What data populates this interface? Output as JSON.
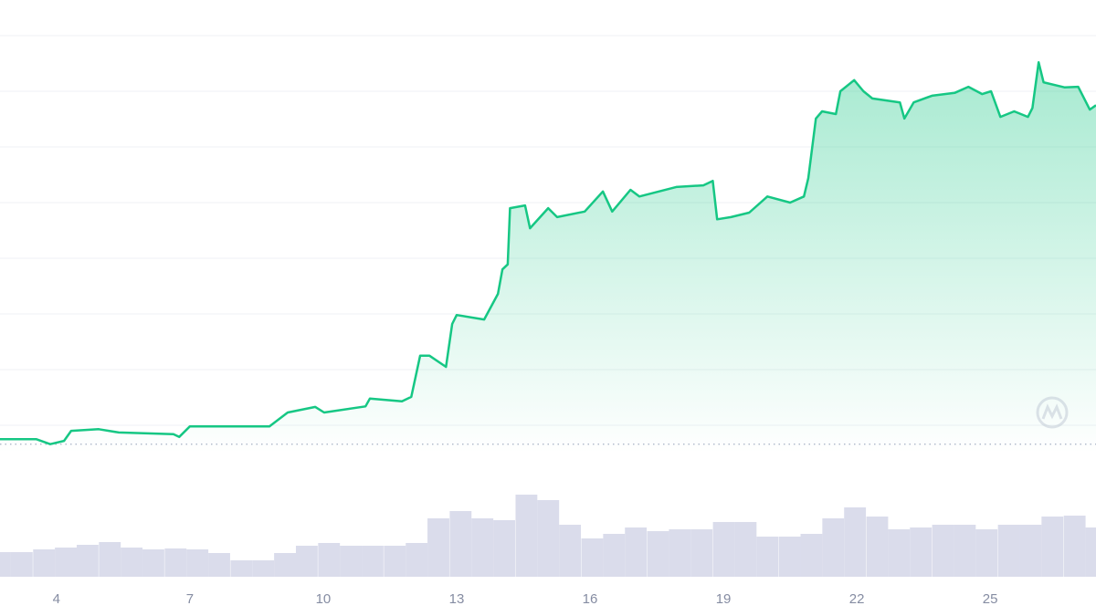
{
  "chart_data": {
    "type": "area",
    "xlim": [
      2.73,
      27.38
    ],
    "xticks": [
      4,
      7,
      10,
      13,
      16,
      19,
      22,
      25
    ],
    "ylim": [
      0.5,
      8.5
    ],
    "yticks": [
      1,
      2,
      3,
      4,
      5,
      6,
      7,
      8
    ],
    "grid": true,
    "baseline": 0.66,
    "series": [
      {
        "color": "#16c784",
        "x": [
          2.73,
          3.55,
          3.86,
          4.17,
          4.33,
          4.95,
          5.4,
          6.63,
          6.76,
          7.0,
          8.79,
          9.2,
          9.82,
          10.02,
          10.95,
          11.05,
          11.77,
          11.98,
          12.18,
          12.39,
          12.76,
          12.9,
          13.0,
          13.62,
          13.93,
          14.03,
          14.15,
          14.2,
          14.54,
          14.65,
          15.06,
          15.26,
          15.88,
          16.29,
          16.5,
          16.91,
          17.11,
          17.94,
          18.55,
          18.76,
          18.86,
          19.17,
          19.58,
          19.99,
          20.5,
          20.81,
          20.91,
          21.08,
          21.22,
          21.53,
          21.63,
          21.94,
          22.15,
          22.35,
          22.97,
          23.07,
          23.28,
          23.69,
          24.2,
          24.51,
          24.82,
          25.02,
          25.23,
          25.54,
          25.85,
          25.95,
          26.09,
          26.2,
          26.67,
          26.98,
          27.24,
          27.38
        ],
        "values": [
          0.75,
          0.75,
          0.66,
          0.72,
          0.9,
          0.93,
          0.87,
          0.84,
          0.79,
          0.98,
          0.98,
          1.23,
          1.33,
          1.23,
          1.34,
          1.48,
          1.43,
          1.51,
          2.25,
          2.25,
          2.05,
          2.82,
          2.98,
          2.9,
          3.36,
          3.8,
          3.89,
          4.9,
          4.95,
          4.54,
          4.9,
          4.74,
          4.84,
          5.2,
          4.84,
          5.23,
          5.11,
          5.28,
          5.31,
          5.39,
          4.7,
          4.74,
          4.82,
          5.11,
          5.0,
          5.11,
          5.44,
          6.51,
          6.64,
          6.59,
          7.0,
          7.2,
          7.0,
          6.87,
          6.8,
          6.51,
          6.8,
          6.92,
          6.97,
          7.08,
          6.95,
          7.0,
          6.54,
          6.64,
          6.54,
          6.7,
          7.52,
          7.16,
          7.07,
          7.08,
          6.67,
          6.75
        ]
      }
    ],
    "volume": {
      "color": "#d3d6e8",
      "vlim": [
        0,
        105
      ],
      "x": [
        2.73,
        3.22,
        3.72,
        4.21,
        4.7,
        5.2,
        5.69,
        6.18,
        6.68,
        7.17,
        7.66,
        8.16,
        8.65,
        9.14,
        9.63,
        10.13,
        10.62,
        11.11,
        11.61,
        12.1,
        12.59,
        13.09,
        13.58,
        14.07,
        14.57,
        15.06,
        15.55,
        16.05,
        16.54,
        17.03,
        17.53,
        18.02,
        18.51,
        19.01,
        19.5,
        19.99,
        20.49,
        20.98,
        21.47,
        21.96,
        22.46,
        22.95,
        23.44,
        23.94,
        24.43,
        24.92,
        25.42,
        25.91,
        26.4,
        26.9,
        27.39
      ],
      "values": [
        27,
        27,
        30,
        32,
        35,
        38,
        32,
        30,
        31,
        30,
        26,
        18,
        18,
        26,
        34,
        37,
        34,
        34,
        34,
        37,
        64,
        72,
        64,
        62,
        90,
        84,
        57,
        42,
        47,
        54,
        50,
        52,
        52,
        60,
        60,
        44,
        44,
        47,
        64,
        76,
        66,
        52,
        54,
        57,
        57,
        52,
        57,
        57,
        66,
        67,
        54
      ]
    }
  }
}
